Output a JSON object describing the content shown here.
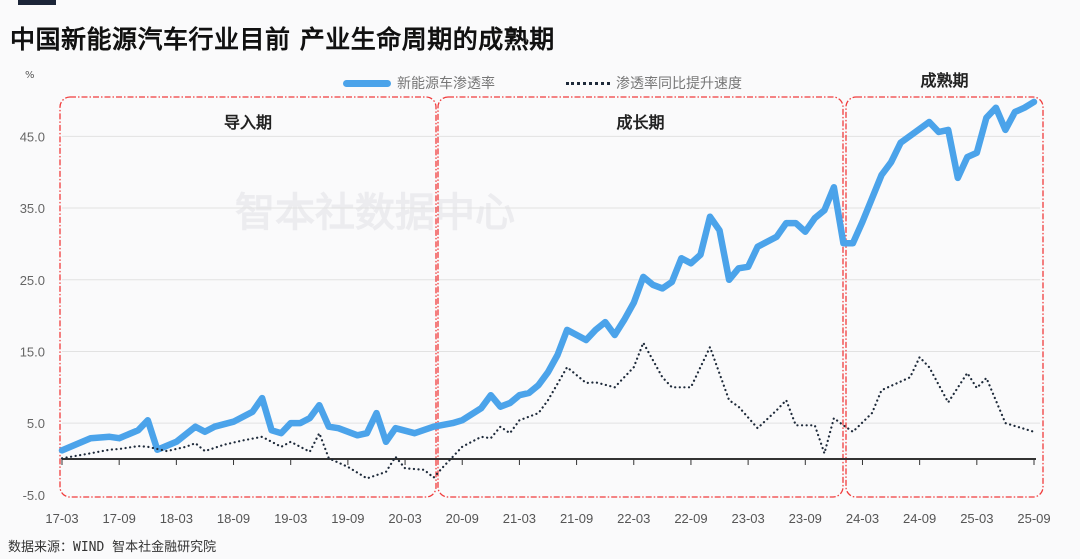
{
  "title": "中国新能源汽车行业目前 产业生命周期的成熟期",
  "source": "数据来源：WIND 智本社金融研究院",
  "watermark": "智本社数据中心",
  "colors": {
    "penetration": "#4ba3ea",
    "speed": "#1e2a3a",
    "phase_box": "#f03c3c",
    "grid": "#e2e2e2"
  },
  "chart_data": {
    "type": "line",
    "ylabel": "%",
    "ylim": [
      -5,
      50
    ],
    "yticks": [
      "45.0",
      "35.0",
      "25.0",
      "15.0",
      "5.0",
      "-5.0"
    ],
    "ytick_values": [
      45,
      35,
      25,
      15,
      5,
      -5
    ],
    "xticks": [
      "17-03",
      "17-09",
      "18-03",
      "18-09",
      "19-03",
      "19-09",
      "20-03",
      "20-09",
      "21-03",
      "21-09",
      "22-03",
      "22-09",
      "23-03",
      "23-09",
      "24-03",
      "24-09",
      "25-03",
      "25-09"
    ],
    "grid": true,
    "legend_placement": "top",
    "phases": [
      {
        "label": "导入期",
        "from": "17-03",
        "to": "20-07"
      },
      {
        "label": "成长期",
        "from": "20-07",
        "to": "24-01"
      },
      {
        "label": "成熟期",
        "from": "24-01",
        "to": "25-09"
      }
    ],
    "series": [
      {
        "name": "新能源车渗透率",
        "style": "solid",
        "points": [
          [
            "17-03",
            1.2
          ],
          [
            "17-06",
            2.9
          ],
          [
            "17-08",
            3.1
          ],
          [
            "17-09",
            2.9
          ],
          [
            "17-11",
            4.0
          ],
          [
            "17-12",
            5.4
          ],
          [
            "18-01",
            1.3
          ],
          [
            "18-03",
            2.4
          ],
          [
            "18-05",
            4.5
          ],
          [
            "18-06",
            3.8
          ],
          [
            "18-07",
            4.5
          ],
          [
            "18-09",
            5.2
          ],
          [
            "18-11",
            6.6
          ],
          [
            "18-12",
            8.5
          ],
          [
            "19-01",
            4.0
          ],
          [
            "19-02",
            3.6
          ],
          [
            "19-03",
            5.0
          ],
          [
            "19-04",
            5.0
          ],
          [
            "19-05",
            5.7
          ],
          [
            "19-06",
            7.5
          ],
          [
            "19-07",
            4.5
          ],
          [
            "19-08",
            4.3
          ],
          [
            "19-10",
            3.3
          ],
          [
            "19-11",
            3.6
          ],
          [
            "19-12",
            6.4
          ],
          [
            "20-01",
            2.4
          ],
          [
            "20-02",
            4.3
          ],
          [
            "20-04",
            3.6
          ],
          [
            "20-06",
            4.5
          ],
          [
            "20-08",
            5.0
          ],
          [
            "20-09",
            5.4
          ],
          [
            "20-11",
            7.1
          ],
          [
            "20-12",
            8.9
          ],
          [
            "21-01",
            7.3
          ],
          [
            "21-02",
            7.8
          ],
          [
            "21-03",
            8.9
          ],
          [
            "21-04",
            9.2
          ],
          [
            "21-05",
            10.3
          ],
          [
            "21-06",
            12.1
          ],
          [
            "21-07",
            14.5
          ],
          [
            "21-08",
            18.0
          ],
          [
            "21-10",
            16.6
          ],
          [
            "21-11",
            18.0
          ],
          [
            "21-12",
            19.1
          ],
          [
            "22-01",
            17.3
          ],
          [
            "22-02",
            19.4
          ],
          [
            "22-03",
            21.8
          ],
          [
            "22-04",
            25.4
          ],
          [
            "22-05",
            24.3
          ],
          [
            "22-06",
            23.8
          ],
          [
            "22-07",
            24.7
          ],
          [
            "22-08",
            28.0
          ],
          [
            "22-09",
            27.3
          ],
          [
            "22-10",
            28.5
          ],
          [
            "22-11",
            33.8
          ],
          [
            "22-12",
            31.9
          ],
          [
            "23-01",
            25.0
          ],
          [
            "23-02",
            26.6
          ],
          [
            "23-03",
            26.8
          ],
          [
            "23-04",
            29.6
          ],
          [
            "23-06",
            31.0
          ],
          [
            "23-07",
            32.9
          ],
          [
            "23-08",
            32.9
          ],
          [
            "23-09",
            31.7
          ],
          [
            "23-10",
            33.6
          ],
          [
            "23-11",
            34.7
          ],
          [
            "23-12",
            37.9
          ],
          [
            "24-01",
            30.1
          ],
          [
            "24-02",
            30.1
          ],
          [
            "24-03",
            33.1
          ],
          [
            "24-05",
            39.6
          ],
          [
            "24-06",
            41.4
          ],
          [
            "24-07",
            44.1
          ],
          [
            "24-10",
            47.0
          ],
          [
            "24-11",
            45.6
          ],
          [
            "24-12",
            45.9
          ],
          [
            "25-01",
            39.2
          ],
          [
            "25-02",
            42.1
          ],
          [
            "25-03",
            42.7
          ],
          [
            "25-04",
            47.6
          ],
          [
            "25-05",
            49.0
          ],
          [
            "25-06",
            45.9
          ],
          [
            "25-07",
            48.4
          ],
          [
            "25-08",
            49.0
          ],
          [
            "25-09",
            49.8
          ]
        ]
      },
      {
        "name": "渗透率同比提升速度",
        "style": "dotted",
        "points": [
          [
            "17-03",
            0.1
          ],
          [
            "17-06",
            0.8
          ],
          [
            "17-08",
            1.3
          ],
          [
            "17-09",
            1.4
          ],
          [
            "17-11",
            1.8
          ],
          [
            "17-12",
            1.7
          ],
          [
            "18-02",
            1.1
          ],
          [
            "18-04",
            1.7
          ],
          [
            "18-05",
            2.2
          ],
          [
            "18-06",
            1.1
          ],
          [
            "18-08",
            2.0
          ],
          [
            "18-10",
            2.6
          ],
          [
            "18-12",
            3.1
          ],
          [
            "19-02",
            1.7
          ],
          [
            "19-03",
            2.4
          ],
          [
            "19-05",
            1.0
          ],
          [
            "19-06",
            3.6
          ],
          [
            "19-07",
            0.1
          ],
          [
            "19-09",
            -1.1
          ],
          [
            "19-11",
            -2.7
          ],
          [
            "20-01",
            -1.8
          ],
          [
            "20-02",
            0.3
          ],
          [
            "20-03",
            -1.3
          ],
          [
            "20-05",
            -1.5
          ],
          [
            "20-06",
            -2.6
          ],
          [
            "20-07",
            -1.1
          ],
          [
            "20-09",
            1.7
          ],
          [
            "20-11",
            3.1
          ],
          [
            "20-12",
            2.9
          ],
          [
            "21-01",
            4.5
          ],
          [
            "21-02",
            3.6
          ],
          [
            "21-03",
            5.4
          ],
          [
            "21-05",
            6.4
          ],
          [
            "21-06",
            8.2
          ],
          [
            "21-08",
            12.8
          ],
          [
            "21-10",
            10.6
          ],
          [
            "21-11",
            10.7
          ],
          [
            "22-01",
            10.0
          ],
          [
            "22-03",
            12.8
          ],
          [
            "22-04",
            16.2
          ],
          [
            "22-06",
            11.4
          ],
          [
            "22-07",
            10.0
          ],
          [
            "22-09",
            10.0
          ],
          [
            "22-11",
            15.6
          ],
          [
            "23-01",
            8.2
          ],
          [
            "23-02",
            7.3
          ],
          [
            "23-04",
            4.3
          ],
          [
            "23-06",
            6.8
          ],
          [
            "23-07",
            8.2
          ],
          [
            "23-08",
            4.7
          ],
          [
            "23-10",
            4.7
          ],
          [
            "23-11",
            0.8
          ],
          [
            "23-12",
            5.7
          ],
          [
            "24-01",
            4.7
          ],
          [
            "24-02",
            3.8
          ],
          [
            "24-04",
            6.4
          ],
          [
            "24-05",
            9.6
          ],
          [
            "24-08",
            11.4
          ],
          [
            "24-09",
            14.2
          ],
          [
            "24-10",
            12.8
          ],
          [
            "24-12",
            7.9
          ],
          [
            "25-02",
            12.0
          ],
          [
            "25-03",
            9.9
          ],
          [
            "25-04",
            11.3
          ],
          [
            "25-06",
            5.0
          ],
          [
            "25-09",
            3.8
          ]
        ]
      }
    ]
  }
}
